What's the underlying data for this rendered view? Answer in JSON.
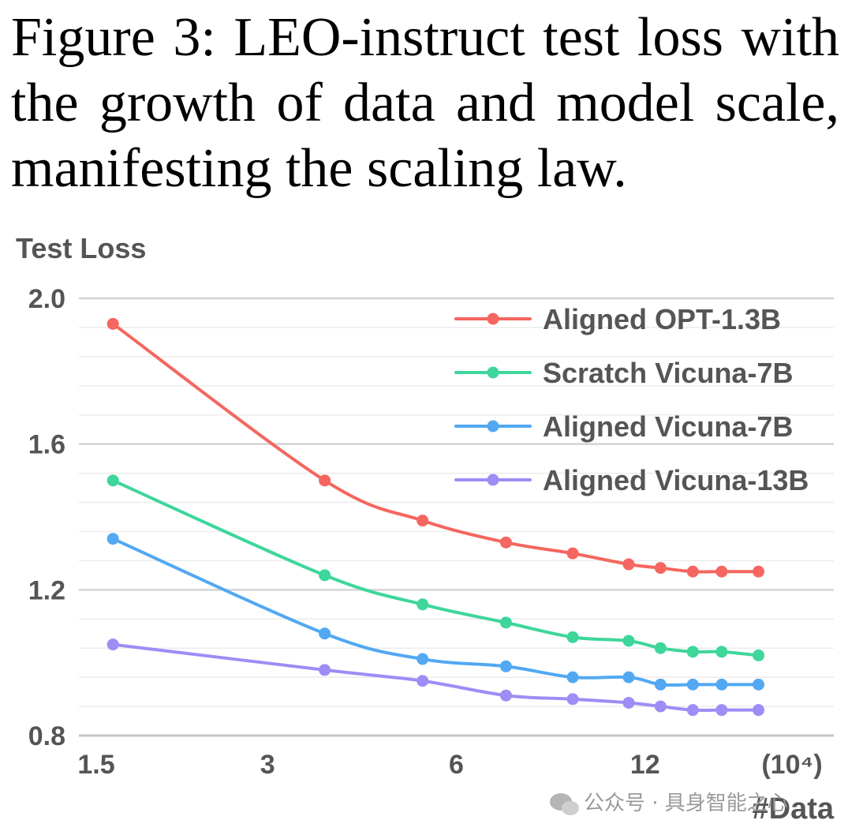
{
  "caption": "Figure 3: LEO-instruct test loss with the growth of data and model scale, manifesting the scaling law.",
  "watermark": "公众号 · 具身智能之心",
  "chart_data": {
    "type": "line",
    "title": "",
    "ylabel": "Test Loss",
    "xlabel": "#Data",
    "x_unit_label": "(10⁴)",
    "x_scale": "log",
    "xlim": [
      1.5,
      24
    ],
    "ylim": [
      0.8,
      2.0
    ],
    "x_ticks": [
      1.5,
      3,
      6,
      12
    ],
    "x_tick_labels": [
      "1.5",
      "3",
      "6",
      "12"
    ],
    "y_ticks": [
      0.8,
      1.2,
      1.6,
      2.0
    ],
    "y_tick_labels": [
      "0.8",
      "1.2",
      "1.6",
      "2.0"
    ],
    "grid": true,
    "legend_position": "top-right",
    "x": [
      1.7,
      3.7,
      5.3,
      7.2,
      9.2,
      11.3,
      12.7,
      14.3,
      15.9,
      18.2
    ],
    "series": [
      {
        "name": "Aligned OPT-1.3B",
        "color": "#f4665f",
        "values": [
          1.93,
          1.5,
          1.39,
          1.33,
          1.3,
          1.27,
          1.26,
          1.25,
          1.25,
          1.25
        ]
      },
      {
        "name": "Scratch Vicuna-7B",
        "color": "#3ed69a",
        "values": [
          1.5,
          1.24,
          1.16,
          1.11,
          1.07,
          1.06,
          1.04,
          1.03,
          1.03,
          1.02
        ]
      },
      {
        "name": "Aligned Vicuna-7B",
        "color": "#52a8f2",
        "values": [
          1.34,
          1.08,
          1.01,
          0.99,
          0.96,
          0.96,
          0.94,
          0.94,
          0.94,
          0.94
        ]
      },
      {
        "name": "Aligned Vicuna-13B",
        "color": "#9d8df5",
        "values": [
          1.05,
          0.98,
          0.95,
          0.91,
          0.9,
          0.89,
          0.88,
          0.87,
          0.87,
          0.87
        ]
      }
    ]
  }
}
